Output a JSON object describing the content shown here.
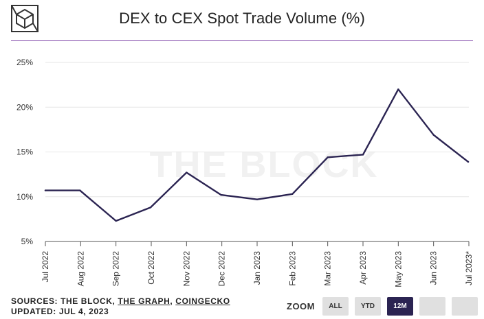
{
  "header": {
    "title": "DEX to CEX Spot Trade Volume (%)"
  },
  "chart_data": {
    "type": "line",
    "title": "DEX to CEX Spot Trade Volume (%)",
    "watermark": "THE BLOCK",
    "xlabel": "",
    "ylabel": "",
    "ylim": [
      5,
      25
    ],
    "y_ticks": [
      "25%",
      "20%",
      "15%",
      "10%",
      "5%"
    ],
    "y_tick_values": [
      25,
      20,
      15,
      10,
      5
    ],
    "grid": "horizontal",
    "categories": [
      "Jul 2022",
      "Aug 2022",
      "Sep 2022",
      "Oct 2022",
      "Nov 2022",
      "Dec 2022",
      "Jan 2023",
      "Feb 2023",
      "Mar 2023",
      "Apr 2023",
      "May 2023",
      "Jun 2023",
      "Jul 2023*"
    ],
    "series": [
      {
        "name": "DEX to CEX Spot Trade Volume",
        "color": "#2b2452",
        "x": [
          0.0,
          0.98,
          2.0,
          2.98,
          4.0,
          4.98,
          6.0,
          7.0,
          8.0,
          9.0,
          10.0,
          11.0,
          11.98
        ],
        "values": [
          10.7,
          10.7,
          7.3,
          8.8,
          12.7,
          10.2,
          9.7,
          10.3,
          14.4,
          14.7,
          22.0,
          16.9,
          13.9
        ]
      }
    ]
  },
  "footer": {
    "sources_prefix": "SOURCES: THE BLOCK, ",
    "source_link1": "THE GRAPH",
    "sources_sep": ", ",
    "source_link2": "COINGECKO",
    "updated": "UPDATED: JUL 4, 2023"
  },
  "zoom": {
    "label": "ZOOM",
    "all": "ALL",
    "ytd": "YTD",
    "m12": "12M",
    "active": "12M"
  },
  "colors": {
    "line": "#2b2452",
    "accent": "#7b3ea6",
    "button": "#e0e0e0",
    "button_active": "#2b2452"
  }
}
